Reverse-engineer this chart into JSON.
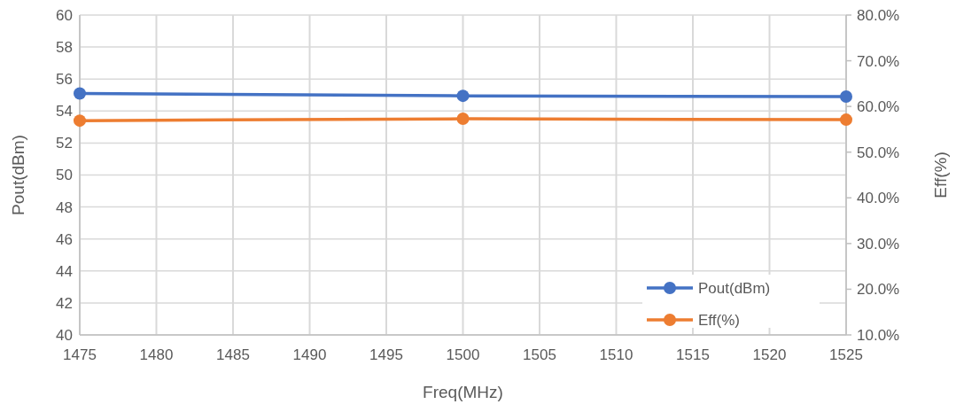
{
  "chart_data": {
    "type": "line",
    "xlabel": "Freq(MHz)",
    "ylabel": "Pout(dBm)",
    "y2label": "Eff(%)",
    "x": [
      1475,
      1500,
      1525
    ],
    "series": [
      {
        "name": "Pout(dBm)",
        "color": "#4472c4",
        "values": [
          55.1,
          54.95,
          54.9
        ]
      },
      {
        "name": "Eff(%)",
        "color": "#ed7d31",
        "values": [
          56.9,
          57.3,
          57.1
        ],
        "axis": "y2"
      }
    ],
    "xlim": [
      1475,
      1525
    ],
    "xticks": [
      1475,
      1480,
      1485,
      1490,
      1495,
      1500,
      1505,
      1510,
      1515,
      1520,
      1525
    ],
    "ylim": [
      40,
      60
    ],
    "yticks": [
      40,
      42,
      44,
      46,
      48,
      50,
      52,
      54,
      56,
      58,
      60
    ],
    "y2lim": [
      10,
      80
    ],
    "y2ticks": [
      {
        "value": 10,
        "label": "10.0%"
      },
      {
        "value": 20,
        "label": "20.0%"
      },
      {
        "value": 30,
        "label": "30.0%"
      },
      {
        "value": 40,
        "label": "40.0%"
      },
      {
        "value": 50,
        "label": "50.0%"
      },
      {
        "value": 60,
        "label": "60.0%"
      },
      {
        "value": 70,
        "label": "70.0%"
      },
      {
        "value": 80,
        "label": "80.0%"
      }
    ],
    "grid": true,
    "legend": "bottom right",
    "marker": "circle",
    "line_style": "solid"
  }
}
